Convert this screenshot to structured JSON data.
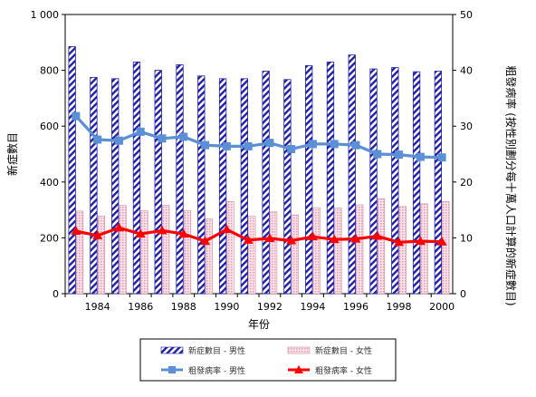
{
  "chart_data": {
    "type": "bar",
    "categories": [
      "1983",
      "1984",
      "1985",
      "1986",
      "1987",
      "1988",
      "1989",
      "1990",
      "1991",
      "1992",
      "1993",
      "1994",
      "1995",
      "1996",
      "1997",
      "1998",
      "1999",
      "2000"
    ],
    "x_tick_labels": [
      "1984",
      "1986",
      "1988",
      "1990",
      "1992",
      "1994",
      "1996",
      "1998",
      "2000"
    ],
    "xlabel": "年份",
    "ylabel_left": "新症數目",
    "ylabel_right": "粗發病率 (按性別劃分每十萬人口計算的新症數目)",
    "ylim_left": [
      0,
      1000
    ],
    "yticks_left": [
      "0",
      "200",
      "400",
      "600",
      "800",
      "1 000"
    ],
    "ylim_right": [
      0,
      50
    ],
    "yticks_right": [
      "0",
      "10",
      "20",
      "30",
      "40",
      "50"
    ],
    "grid": false,
    "legend_position": "bottom",
    "series": [
      {
        "name": "新症數目 - 男性",
        "kind": "bar",
        "axis": "left",
        "color": "#1f1fa8",
        "values": [
          885,
          775,
          770,
          830,
          800,
          820,
          780,
          770,
          770,
          797,
          767,
          817,
          830,
          855,
          805,
          810,
          795,
          797
        ]
      },
      {
        "name": "新症數目 - 女性",
        "kind": "bar",
        "axis": "left",
        "color": "#f4b6c8",
        "values": [
          296,
          278,
          316,
          297,
          317,
          298,
          268,
          330,
          277,
          293,
          282,
          308,
          307,
          318,
          340,
          312,
          322,
          330
        ]
      },
      {
        "name": "粗發病率 - 男性",
        "kind": "line",
        "axis": "right",
        "color": "#5b8fd6",
        "values": [
          31.8,
          27.6,
          27.4,
          29.0,
          27.8,
          28.1,
          26.6,
          26.4,
          26.4,
          27.0,
          25.9,
          26.8,
          26.8,
          26.6,
          25.0,
          24.9,
          24.5,
          24.4
        ]
      },
      {
        "name": "粗發病率 - 女性",
        "kind": "line",
        "axis": "right",
        "color": "#ff0000",
        "values": [
          11.2,
          10.4,
          11.8,
          10.7,
          11.3,
          10.7,
          9.4,
          11.5,
          9.6,
          9.9,
          9.5,
          10.2,
          9.7,
          9.8,
          10.3,
          9.2,
          9.4,
          9.3
        ]
      }
    ]
  }
}
